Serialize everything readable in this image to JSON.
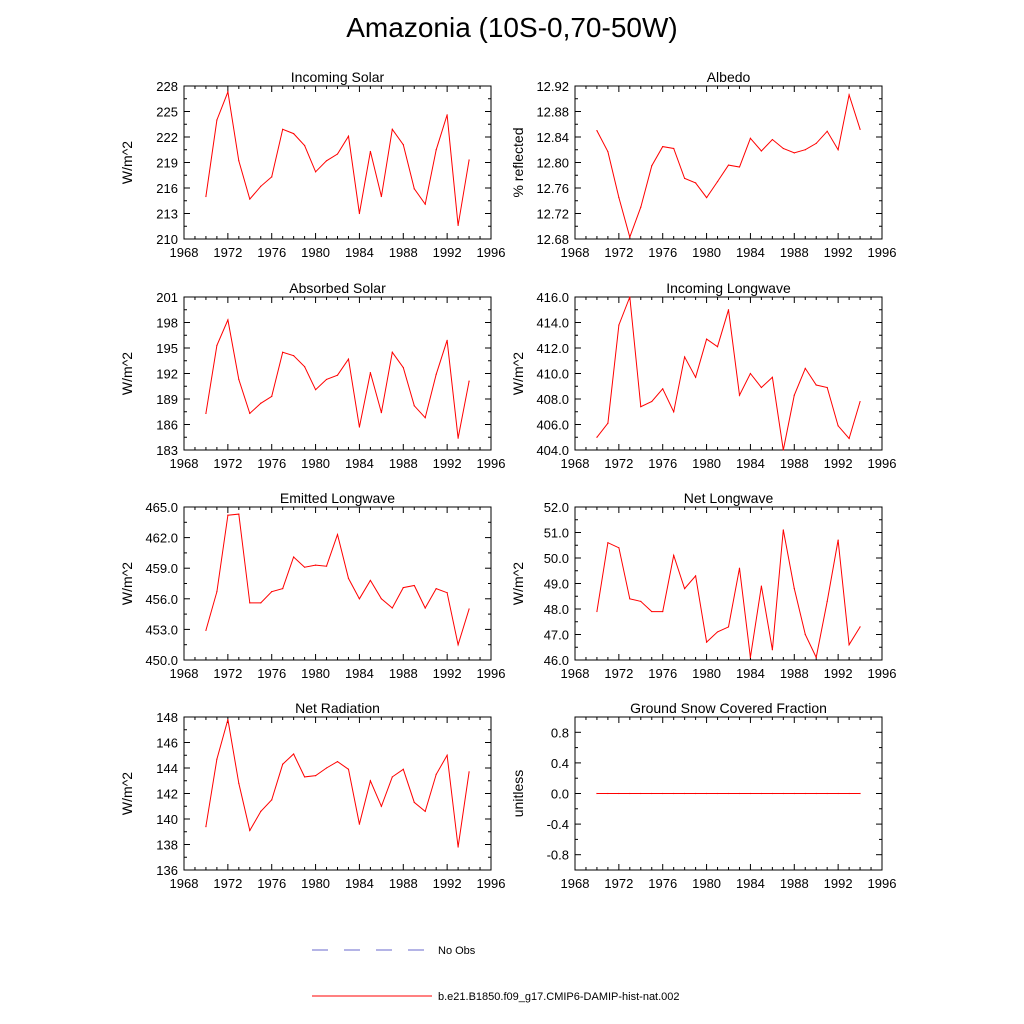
{
  "title": "Amazonia (10S-0,70-50W)",
  "legend": {
    "entries": [
      {
        "label": "No Obs",
        "color": "#6a6acd",
        "style": "dashed"
      },
      {
        "label": "b.e21.B1850.f09_g17.CMIP6-DAMIP-hist-nat.002",
        "color": "#ff0000",
        "style": "solid"
      }
    ]
  },
  "chart_data": [
    {
      "type": "line",
      "title": "Incoming Solar",
      "ylabel": "W/m^2",
      "xlim": [
        1968,
        1996
      ],
      "xticks": [
        1968,
        1972,
        1976,
        1980,
        1984,
        1988,
        1992,
        1996
      ],
      "ylim": [
        210,
        228
      ],
      "yticks": [
        "210",
        "213",
        "216",
        "219",
        "222",
        "225",
        "228"
      ],
      "color": "#ff0000",
      "x": [
        1970,
        1971,
        1972,
        1973,
        1974,
        1975,
        1976,
        1977,
        1978,
        1979,
        1980,
        1981,
        1982,
        1983,
        1984,
        1985,
        1986,
        1987,
        1988,
        1989,
        1990,
        1991,
        1992,
        1993,
        1994
      ],
      "values": [
        215.0,
        224.0,
        227.3,
        219.2,
        214.7,
        216.2,
        217.3,
        222.9,
        222.4,
        221.0,
        217.9,
        219.2,
        220.0,
        222.1,
        213.0,
        220.3,
        215.0,
        222.9,
        221.1,
        215.9,
        214.1,
        220.5,
        224.6,
        211.6,
        219.3
      ]
    },
    {
      "type": "line",
      "title": "Albedo",
      "ylabel": "% reflected",
      "xlim": [
        1968,
        1996
      ],
      "xticks": [
        1968,
        1972,
        1976,
        1980,
        1984,
        1988,
        1992,
        1996
      ],
      "ylim": [
        12.68,
        12.92
      ],
      "yticks": [
        "12.68",
        "12.72",
        "12.76",
        "12.80",
        "12.84",
        "12.88",
        "12.92"
      ],
      "color": "#ff0000",
      "x": [
        1970,
        1971,
        1972,
        1973,
        1974,
        1975,
        1976,
        1977,
        1978,
        1979,
        1980,
        1981,
        1982,
        1983,
        1984,
        1985,
        1986,
        1987,
        1988,
        1989,
        1990,
        1991,
        1992,
        1993,
        1994
      ],
      "values": [
        12.85,
        12.817,
        12.745,
        12.683,
        12.73,
        12.795,
        12.825,
        12.822,
        12.775,
        12.768,
        12.745,
        12.77,
        12.796,
        12.793,
        12.838,
        12.818,
        12.836,
        12.822,
        12.815,
        12.82,
        12.83,
        12.849,
        12.82,
        12.906,
        12.852
      ]
    },
    {
      "type": "line",
      "title": "Absorbed Solar",
      "ylabel": "W/m^2",
      "xlim": [
        1968,
        1996
      ],
      "xticks": [
        1968,
        1972,
        1976,
        1980,
        1984,
        1988,
        1992,
        1996
      ],
      "ylim": [
        183,
        201
      ],
      "yticks": [
        "183",
        "186",
        "189",
        "192",
        "195",
        "198",
        "201"
      ],
      "color": "#ff0000",
      "x": [
        1970,
        1971,
        1972,
        1973,
        1974,
        1975,
        1976,
        1977,
        1978,
        1979,
        1980,
        1981,
        1982,
        1983,
        1984,
        1985,
        1986,
        1987,
        1988,
        1989,
        1990,
        1991,
        1992,
        1993,
        1994
      ],
      "values": [
        187.3,
        195.3,
        198.3,
        191.3,
        187.3,
        188.5,
        189.3,
        194.5,
        194.1,
        192.8,
        190.1,
        191.3,
        191.8,
        193.7,
        185.7,
        192.1,
        187.4,
        194.5,
        192.7,
        188.2,
        186.8,
        191.9,
        195.9,
        184.4,
        191.1
      ]
    },
    {
      "type": "line",
      "title": "Incoming Longwave",
      "ylabel": "W/m^2",
      "xlim": [
        1968,
        1996
      ],
      "xticks": [
        1968,
        1972,
        1976,
        1980,
        1984,
        1988,
        1992,
        1996
      ],
      "ylim": [
        404.0,
        416.0
      ],
      "yticks": [
        "404.0",
        "406.0",
        "408.0",
        "410.0",
        "412.0",
        "414.0",
        "416.0"
      ],
      "color": "#ff0000",
      "x": [
        1970,
        1971,
        1972,
        1973,
        1974,
        1975,
        1976,
        1977,
        1978,
        1979,
        1980,
        1981,
        1982,
        1983,
        1984,
        1985,
        1986,
        1987,
        1988,
        1989,
        1990,
        1991,
        1992,
        1993,
        1994
      ],
      "values": [
        405.0,
        406.1,
        413.8,
        416.0,
        407.4,
        407.8,
        408.8,
        407.0,
        411.3,
        409.7,
        412.7,
        412.1,
        415.0,
        408.3,
        410.0,
        408.9,
        409.7,
        404.0,
        408.3,
        410.4,
        409.1,
        408.9,
        405.9,
        404.9,
        407.8
      ]
    },
    {
      "type": "line",
      "title": "Emitted Longwave",
      "ylabel": "W/m^2",
      "xlim": [
        1968,
        1996
      ],
      "xticks": [
        1968,
        1972,
        1976,
        1980,
        1984,
        1988,
        1992,
        1996
      ],
      "ylim": [
        450.0,
        465.0
      ],
      "yticks": [
        "450.0",
        "453.0",
        "456.0",
        "459.0",
        "462.0",
        "465.0"
      ],
      "color": "#ff0000",
      "x": [
        1970,
        1971,
        1972,
        1973,
        1974,
        1975,
        1976,
        1977,
        1978,
        1979,
        1980,
        1981,
        1982,
        1983,
        1984,
        1985,
        1986,
        1987,
        1988,
        1989,
        1990,
        1991,
        1992,
        1993,
        1994
      ],
      "values": [
        452.9,
        456.7,
        464.2,
        464.3,
        455.6,
        455.6,
        456.7,
        457.0,
        460.1,
        459.1,
        459.3,
        459.2,
        462.3,
        458.0,
        456.0,
        457.8,
        456.0,
        455.1,
        457.1,
        457.3,
        455.1,
        457.0,
        456.6,
        451.5,
        455.0
      ]
    },
    {
      "type": "line",
      "title": "Net Longwave",
      "ylabel": "W/m^2",
      "xlim": [
        1968,
        1996
      ],
      "xticks": [
        1968,
        1972,
        1976,
        1980,
        1984,
        1988,
        1992,
        1996
      ],
      "ylim": [
        46.0,
        52.0
      ],
      "yticks": [
        "46.0",
        "47.0",
        "48.0",
        "49.0",
        "50.0",
        "51.0",
        "52.0"
      ],
      "color": "#ff0000",
      "x": [
        1970,
        1971,
        1972,
        1973,
        1974,
        1975,
        1976,
        1977,
        1978,
        1979,
        1980,
        1981,
        1982,
        1983,
        1984,
        1985,
        1986,
        1987,
        1988,
        1989,
        1990,
        1991,
        1992,
        1993,
        1994
      ],
      "values": [
        47.9,
        50.6,
        50.4,
        48.4,
        48.3,
        47.9,
        47.9,
        50.1,
        48.8,
        49.3,
        46.7,
        47.1,
        47.3,
        49.6,
        46.1,
        48.9,
        46.4,
        51.1,
        48.8,
        47.0,
        46.1,
        48.3,
        50.7,
        46.6,
        47.3
      ]
    },
    {
      "type": "line",
      "title": "Net Radiation",
      "ylabel": "W/m^2",
      "xlim": [
        1968,
        1996
      ],
      "xticks": [
        1968,
        1972,
        1976,
        1980,
        1984,
        1988,
        1992,
        1996
      ],
      "ylim": [
        136,
        148
      ],
      "yticks": [
        "136",
        "138",
        "140",
        "142",
        "144",
        "146",
        "148"
      ],
      "color": "#ff0000",
      "x": [
        1970,
        1971,
        1972,
        1973,
        1974,
        1975,
        1976,
        1977,
        1978,
        1979,
        1980,
        1981,
        1982,
        1983,
        1984,
        1985,
        1986,
        1987,
        1988,
        1989,
        1990,
        1991,
        1992,
        1993,
        1994
      ],
      "values": [
        139.4,
        144.7,
        147.8,
        142.8,
        139.1,
        140.6,
        141.5,
        144.3,
        145.1,
        143.3,
        143.4,
        144.0,
        144.5,
        143.9,
        139.6,
        143.0,
        141.0,
        143.3,
        143.9,
        141.3,
        140.6,
        143.5,
        145.0,
        137.8,
        143.7
      ]
    },
    {
      "type": "line",
      "title": "Ground Snow Covered Fraction",
      "ylabel": "unitless",
      "xlim": [
        1968,
        1996
      ],
      "xticks": [
        1968,
        1972,
        1976,
        1980,
        1984,
        1988,
        1992,
        1996
      ],
      "ylim": [
        -1.0,
        1.0
      ],
      "yticks": [
        "-0.8",
        "-0.4",
        "0.0",
        "0.4",
        "0.8"
      ],
      "color": "#ff0000",
      "x": [
        1970,
        1971,
        1972,
        1973,
        1974,
        1975,
        1976,
        1977,
        1978,
        1979,
        1980,
        1981,
        1982,
        1983,
        1984,
        1985,
        1986,
        1987,
        1988,
        1989,
        1990,
        1991,
        1992,
        1993,
        1994
      ],
      "values": [
        0,
        0,
        0,
        0,
        0,
        0,
        0,
        0,
        0,
        0,
        0,
        0,
        0,
        0,
        0,
        0,
        0,
        0,
        0,
        0,
        0,
        0,
        0,
        0,
        0
      ]
    }
  ]
}
